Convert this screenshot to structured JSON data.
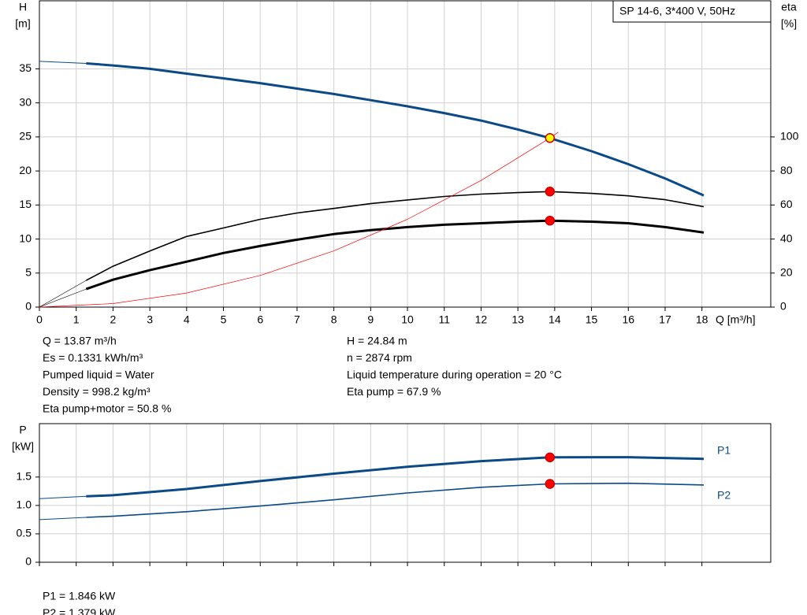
{
  "chart_data": [
    {
      "type": "line",
      "legend_label": "SP 14-6, 3*400 V, 50Hz",
      "ylabel": "H",
      "yunit": "[m]",
      "y2label": "eta",
      "y2unit": "[%]",
      "xlabel": "Q [m³/h]",
      "xlim": [
        0,
        19.87
      ],
      "xticks": [
        0,
        1,
        2,
        3,
        4,
        5,
        6,
        7,
        8,
        9,
        10,
        11,
        12,
        13,
        14,
        15,
        16,
        17,
        18
      ],
      "ylim": [
        0,
        45
      ],
      "yticks": [
        0,
        5,
        10,
        15,
        20,
        25,
        30,
        35
      ],
      "y2lim": [
        0,
        180
      ],
      "y2ticks": [
        0,
        20,
        40,
        60,
        80,
        100
      ],
      "grid": true,
      "series": [
        {
          "color": "#0b4a87",
          "width": 1,
          "x": [
            0,
            1.27
          ],
          "values": [
            36.1,
            35.8
          ]
        },
        {
          "color": "#0b4a87",
          "width": 3,
          "x": [
            1.27,
            2,
            3,
            4,
            5,
            6,
            7,
            8,
            9,
            10,
            11,
            12,
            13,
            13.87,
            15,
            16,
            17,
            18.05
          ],
          "values": [
            35.8,
            35.5,
            35.0,
            34.3,
            33.6,
            32.9,
            32.1,
            31.3,
            30.4,
            29.5,
            28.5,
            27.4,
            26.1,
            24.84,
            22.9,
            21.0,
            18.9,
            16.4
          ]
        },
        {
          "color": "#000000",
          "width": 0.6,
          "axis": "y2",
          "x": [
            0,
            1.27
          ],
          "values": [
            0,
            15.7
          ]
        },
        {
          "color": "#000000",
          "width": 1.6,
          "axis": "y2",
          "x": [
            1.27,
            2,
            3,
            4,
            5,
            6,
            7,
            8,
            9,
            10,
            11,
            12,
            13,
            13.87,
            15,
            16,
            17,
            18.05
          ],
          "values": [
            15.7,
            24,
            33,
            41.5,
            46.5,
            51.6,
            55.3,
            58,
            60.8,
            63,
            65,
            66.4,
            67.3,
            67.9,
            66.8,
            65.4,
            63.1,
            59
          ]
        },
        {
          "color": "#000000",
          "width": 0.6,
          "axis": "y2",
          "x": [
            0,
            1.27
          ],
          "values": [
            0,
            10.6
          ]
        },
        {
          "color": "#000000",
          "width": 3,
          "axis": "y2",
          "x": [
            1.27,
            2,
            3,
            4,
            5,
            6,
            7,
            8,
            9,
            10,
            11,
            12,
            13,
            13.87,
            15,
            16,
            17,
            18.05
          ],
          "values": [
            10.6,
            16.1,
            21.7,
            26.7,
            31.8,
            35.9,
            39.6,
            42.9,
            45.2,
            47,
            48.4,
            49.3,
            50.2,
            50.8,
            50.2,
            49.3,
            47,
            43.8
          ]
        },
        {
          "color": "#ff0000",
          "width": 0.7,
          "x": [
            0,
            2,
            4,
            6,
            8,
            10,
            12,
            13.87,
            14.1
          ],
          "values": [
            0,
            0.52,
            2.07,
            4.65,
            8.26,
            12.9,
            18.6,
            24.84,
            25.7
          ]
        }
      ],
      "points": [
        {
          "x": 13.87,
          "value": 24.84,
          "color": "#ffff00"
        },
        {
          "x": 13.87,
          "value": 67.9,
          "axis": "y2",
          "color": "#ff0000"
        },
        {
          "x": 13.87,
          "value": 50.8,
          "axis": "y2",
          "color": "#ff0000"
        }
      ],
      "annotations_left": [
        "Q = 13.87 m³/h",
        "Es = 0.1331 kWh/m³",
        "Pumped liquid = Water",
        "Density = 998.2 kg/m³",
        "Eta pump+motor = 50.8 %"
      ],
      "annotations_right": [
        "H = 24.84 m",
        "n = 2874 rpm",
        "Liquid temperature during operation = 20 °C",
        "Eta pump = 67.9 %"
      ]
    },
    {
      "type": "line",
      "ylabel": "P",
      "yunit": "[kW]",
      "xlim": [
        0,
        19.87
      ],
      "xticks": [
        0,
        1,
        2,
        3,
        4,
        5,
        6,
        7,
        8,
        9,
        10,
        11,
        12,
        13,
        14,
        15,
        16,
        17,
        18
      ],
      "ylim": [
        0,
        2.44
      ],
      "yticks": [
        0,
        0.5,
        {
          "value": 1,
          "label": "1.0"
        },
        1.5
      ],
      "grid": true,
      "series": [
        {
          "color": "#0b4a87",
          "width": 1,
          "x": [
            0,
            1.27
          ],
          "values": [
            1.12,
            1.16
          ]
        },
        {
          "name": "P1",
          "color": "#0b4a87",
          "width": 3,
          "x": [
            1.27,
            2,
            4,
            6,
            8,
            10,
            12,
            13.87,
            16,
            18.05
          ],
          "values": [
            1.16,
            1.18,
            1.29,
            1.43,
            1.56,
            1.68,
            1.78,
            1.846,
            1.85,
            1.82
          ]
        },
        {
          "color": "#0b4a87",
          "width": 1,
          "x": [
            0,
            1.27
          ],
          "values": [
            0.75,
            0.79
          ]
        },
        {
          "name": "P2",
          "color": "#0b4a87",
          "width": 1.6,
          "x": [
            1.27,
            2,
            4,
            6,
            8,
            10,
            12,
            13.87,
            16,
            18.05
          ],
          "values": [
            0.79,
            0.81,
            0.89,
            0.99,
            1.1,
            1.22,
            1.32,
            1.379,
            1.39,
            1.36
          ]
        }
      ],
      "points": [
        {
          "x": 13.87,
          "value": 1.846,
          "color": "#ff0000"
        },
        {
          "x": 13.87,
          "value": 1.379,
          "color": "#ff0000"
        }
      ],
      "annotations_left": [
        "P1 = 1.846 kW",
        "P2 = 1.379 kW"
      ]
    }
  ]
}
